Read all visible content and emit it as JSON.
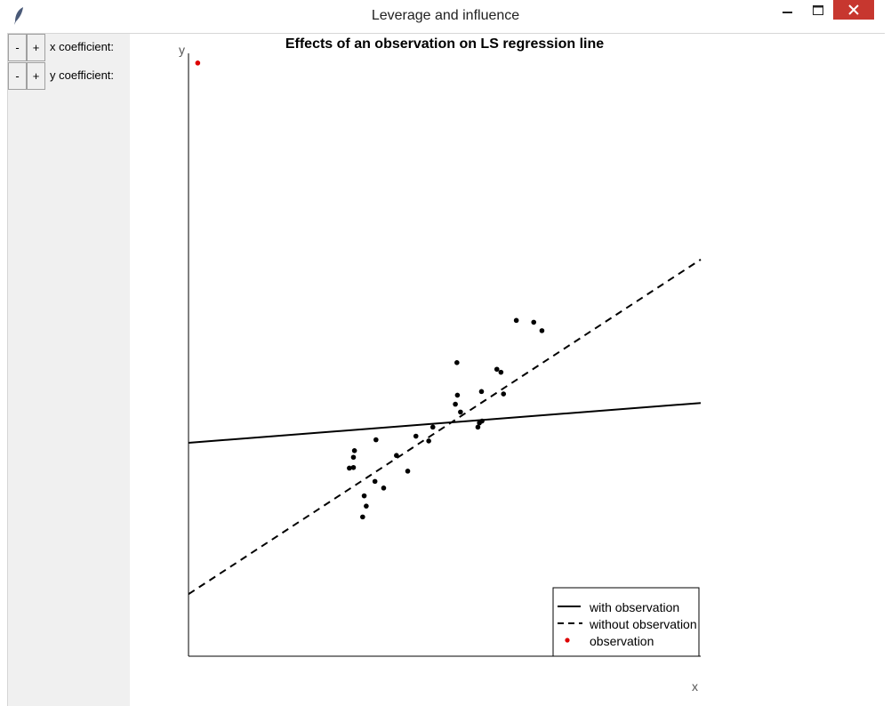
{
  "window": {
    "title": "Leverage and influence",
    "minimize_icon": "minimize-icon",
    "maximize_icon": "maximize-icon",
    "close_icon": "close-icon",
    "app_icon": "feather-icon"
  },
  "controls": [
    {
      "minus": "-",
      "plus": "+",
      "label": "x coefficient:"
    },
    {
      "minus": "-",
      "plus": "+",
      "label": "y coefficient:"
    }
  ],
  "chart_data": {
    "type": "scatter",
    "title": "Effects of an observation on LS regression line",
    "xlabel": "x",
    "ylabel": "y",
    "xlim": [
      0,
      1
    ],
    "ylim": [
      0,
      1
    ],
    "ticks_shown": false,
    "grid": false,
    "legend_position": "bottom-right",
    "points": [
      {
        "x": 0.322,
        "y": 0.313
      },
      {
        "x": 0.34,
        "y": 0.231
      },
      {
        "x": 0.343,
        "y": 0.266
      },
      {
        "x": 0.347,
        "y": 0.249
      },
      {
        "x": 0.324,
        "y": 0.341
      },
      {
        "x": 0.322,
        "y": 0.33
      },
      {
        "x": 0.314,
        "y": 0.312
      },
      {
        "x": 0.366,
        "y": 0.359
      },
      {
        "x": 0.364,
        "y": 0.29
      },
      {
        "x": 0.381,
        "y": 0.279
      },
      {
        "x": 0.406,
        "y": 0.333
      },
      {
        "x": 0.428,
        "y": 0.307
      },
      {
        "x": 0.444,
        "y": 0.365
      },
      {
        "x": 0.469,
        "y": 0.357
      },
      {
        "x": 0.477,
        "y": 0.38
      },
      {
        "x": 0.521,
        "y": 0.418
      },
      {
        "x": 0.525,
        "y": 0.433
      },
      {
        "x": 0.531,
        "y": 0.405
      },
      {
        "x": 0.524,
        "y": 0.487
      },
      {
        "x": 0.565,
        "y": 0.38
      },
      {
        "x": 0.572,
        "y": 0.439
      },
      {
        "x": 0.615,
        "y": 0.435
      },
      {
        "x": 0.61,
        "y": 0.471
      },
      {
        "x": 0.602,
        "y": 0.476
      },
      {
        "x": 0.64,
        "y": 0.557
      },
      {
        "x": 0.674,
        "y": 0.554
      },
      {
        "x": 0.69,
        "y": 0.54
      },
      {
        "x": 0.573,
        "y": 0.39
      },
      {
        "x": 0.568,
        "y": 0.387
      }
    ],
    "observation": {
      "x": 0.018,
      "y": 0.984,
      "color": "#dd0000"
    },
    "series": [
      {
        "name": "with observation",
        "style": "solid",
        "x": [
          0,
          1
        ],
        "y": [
          0.354,
          0.42
        ]
      },
      {
        "name": "without observation",
        "style": "dashed",
        "x": [
          0,
          1
        ],
        "y": [
          0.103,
          0.658
        ]
      }
    ],
    "legend": [
      {
        "label": "with observation",
        "marker": "solid-line"
      },
      {
        "label": "without observation",
        "marker": "dashed-line"
      },
      {
        "label": "observation",
        "marker": "red-dot"
      }
    ]
  }
}
